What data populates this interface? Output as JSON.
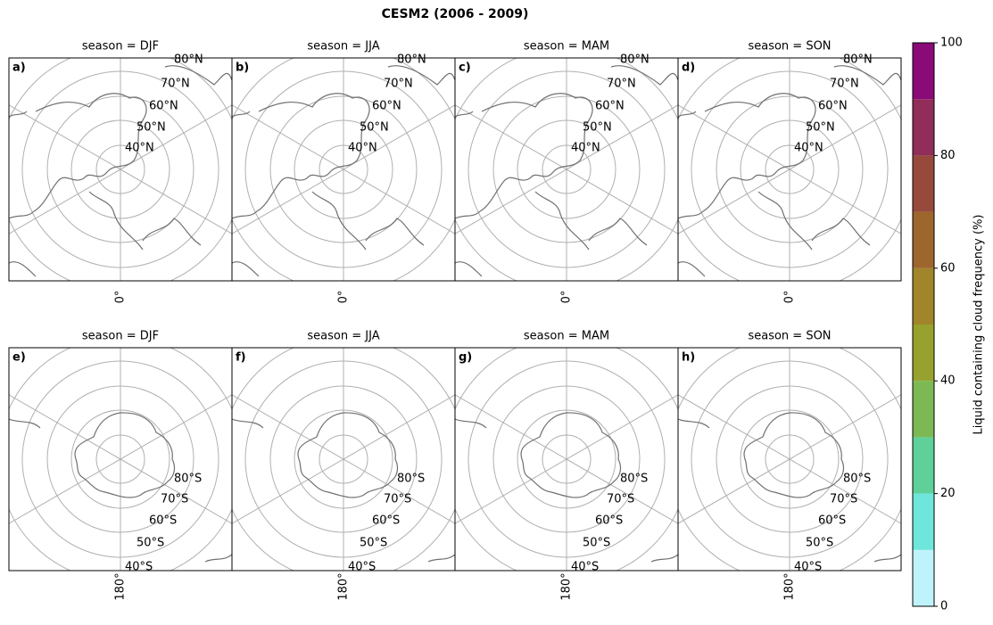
{
  "title": "CESM2 (2006 - 2009)",
  "panels": [
    {
      "label": "a)",
      "title": "season = DJF",
      "hemisphere": "N",
      "lat_labels": [
        "40°N",
        "50°N",
        "60°N",
        "70°N",
        "80°N"
      ],
      "lon_label": "0°"
    },
    {
      "label": "b)",
      "title": "season = JJA",
      "hemisphere": "N",
      "lat_labels": [
        "40°N",
        "50°N",
        "60°N",
        "70°N",
        "80°N"
      ],
      "lon_label": "0°"
    },
    {
      "label": "c)",
      "title": "season = MAM",
      "hemisphere": "N",
      "lat_labels": [
        "40°N",
        "50°N",
        "60°N",
        "70°N",
        "80°N"
      ],
      "lon_label": "0°"
    },
    {
      "label": "d)",
      "title": "season = SON",
      "hemisphere": "N",
      "lat_labels": [
        "40°N",
        "50°N",
        "60°N",
        "70°N",
        "80°N"
      ],
      "lon_label": "0°"
    },
    {
      "label": "e)",
      "title": "season = DJF",
      "hemisphere": "S",
      "lat_labels": [
        "80°S",
        "70°S",
        "60°S",
        "50°S",
        "40°S"
      ],
      "lon_label": "180°"
    },
    {
      "label": "f)",
      "title": "season = JJA",
      "hemisphere": "S",
      "lat_labels": [
        "80°S",
        "70°S",
        "60°S",
        "50°S",
        "40°S"
      ],
      "lon_label": "180°"
    },
    {
      "label": "g)",
      "title": "season = MAM",
      "hemisphere": "S",
      "lat_labels": [
        "80°S",
        "70°S",
        "60°S",
        "50°S",
        "40°S"
      ],
      "lon_label": "180°"
    },
    {
      "label": "h)",
      "title": "season = SON",
      "hemisphere": "S",
      "lat_labels": [
        "80°S",
        "70°S",
        "60°S",
        "50°S",
        "40°S"
      ],
      "lon_label": "180°"
    }
  ],
  "colorbar": {
    "label": "Liquid containing cloud frequency (%)",
    "ylim": [
      0,
      100
    ],
    "yticks": [
      0,
      20,
      40,
      60,
      80,
      100
    ],
    "levels": [
      0,
      10,
      20,
      30,
      40,
      50,
      60,
      70,
      80,
      90,
      100
    ],
    "colors": [
      "#bff3fb",
      "#6ee6dc",
      "#5fd09a",
      "#7cb954",
      "#97a22e",
      "#a1852a",
      "#9c662c",
      "#974a3c",
      "#902d58",
      "#8a0a78"
    ]
  }
}
